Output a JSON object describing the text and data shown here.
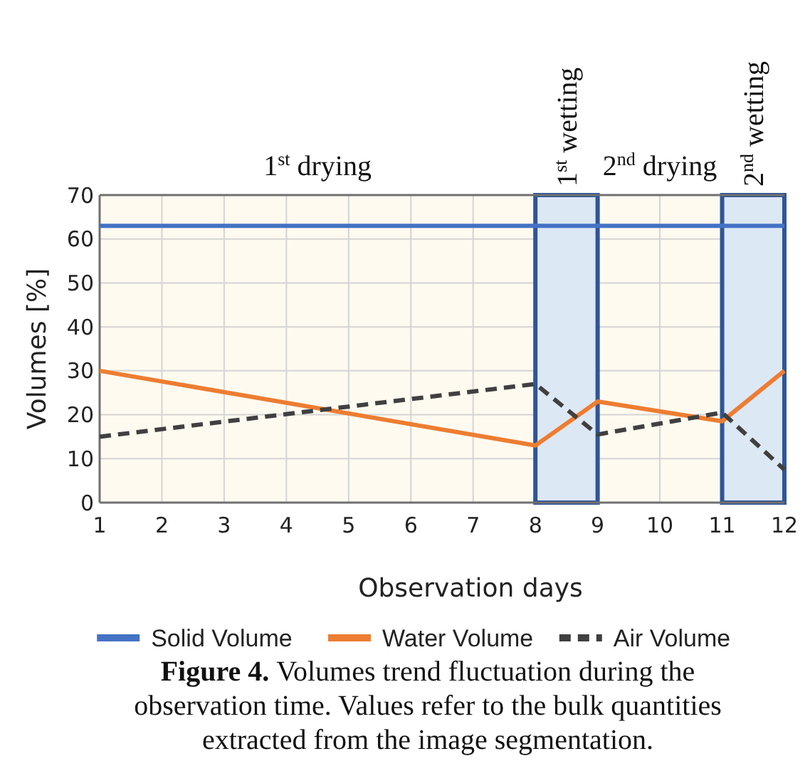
{
  "chart_data": {
    "type": "line",
    "xlabel": "Observation days",
    "ylabel": "Volumes [%]",
    "xlim": [
      1,
      12
    ],
    "xticks": [
      1,
      2,
      3,
      4,
      5,
      6,
      7,
      8,
      9,
      10,
      11,
      12
    ],
    "ylim": [
      0,
      70
    ],
    "yticks": [
      0,
      10,
      20,
      30,
      40,
      50,
      60,
      70
    ],
    "grid": true,
    "legend": "bottom",
    "series": [
      {
        "name": "Solid Volume",
        "color": "#4472c4",
        "x": [
          1,
          12
        ],
        "values": [
          63,
          63
        ]
      },
      {
        "name": "Water Volume",
        "color": "#ed7d31",
        "x": [
          1,
          8,
          9,
          11,
          12
        ],
        "values": [
          30,
          13,
          23,
          18.5,
          30
        ]
      },
      {
        "name": "Air Volume",
        "color": "#404040",
        "line_style": "dashed",
        "x": [
          1,
          8,
          9,
          11,
          12
        ],
        "values": [
          15,
          27,
          15.5,
          20.5,
          7.5
        ]
      }
    ],
    "bands": [
      {
        "axis": "x",
        "from": 8,
        "to": 9,
        "label": "1$^{st}$ wetting",
        "color": "#dde8f5"
      },
      {
        "axis": "x",
        "from": 11,
        "to": 12,
        "label": "2$^{nd}$ wetting",
        "color": "#dde8f5"
      }
    ],
    "annotations": [
      "1$^{st}$ drying",
      "2$^{nd}$ drying",
      "Figure 4.",
      "Volumes trend fluctuation during the observation time. Values refer to the bulk quantities extracted from the image segmentation."
    ]
  }
}
